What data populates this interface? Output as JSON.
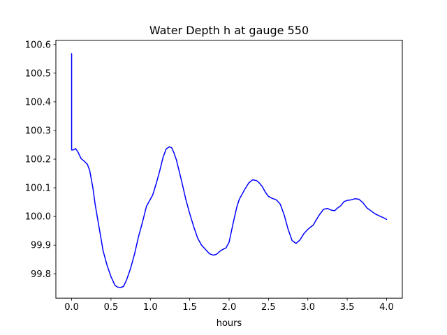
{
  "chart_data": {
    "type": "line",
    "title": "Water Depth h at gauge 550",
    "xlabel": "hours",
    "ylabel": "",
    "xlim": [
      -0.2,
      4.2
    ],
    "ylim": [
      99.715,
      100.615
    ],
    "xticks": [
      0.0,
      0.5,
      1.0,
      1.5,
      2.0,
      2.5,
      3.0,
      3.5,
      4.0
    ],
    "xtick_labels": [
      "0.0",
      "0.5",
      "1.0",
      "1.5",
      "2.0",
      "2.5",
      "3.0",
      "3.5",
      "4.0"
    ],
    "yticks": [
      99.8,
      99.9,
      100.0,
      100.1,
      100.2,
      100.3,
      100.4,
      100.5,
      100.6
    ],
    "ytick_labels": [
      "99.8",
      "99.9",
      "100.0",
      "100.1",
      "100.2",
      "100.3",
      "100.4",
      "100.5",
      "100.6"
    ],
    "grid": false,
    "series": [
      {
        "color": "#0000ff",
        "x": [
          0.0,
          0.0,
          0.0,
          0.02,
          0.05,
          0.08,
          0.12,
          0.16,
          0.2,
          0.23,
          0.27,
          0.3,
          0.35,
          0.4,
          0.45,
          0.5,
          0.55,
          0.58,
          0.62,
          0.66,
          0.7,
          0.75,
          0.8,
          0.85,
          0.9,
          0.95,
          1.0,
          1.03,
          1.08,
          1.12,
          1.16,
          1.2,
          1.24,
          1.27,
          1.3,
          1.33,
          1.36,
          1.4,
          1.45,
          1.5,
          1.55,
          1.6,
          1.65,
          1.7,
          1.75,
          1.8,
          1.84,
          1.88,
          1.92,
          1.96,
          2.0,
          2.05,
          2.1,
          2.13,
          2.17,
          2.2,
          2.25,
          2.3,
          2.35,
          2.38,
          2.42,
          2.46,
          2.5,
          2.55,
          2.6,
          2.65,
          2.7,
          2.75,
          2.8,
          2.85,
          2.9,
          2.95,
          3.0,
          3.03,
          3.07,
          3.1,
          3.15,
          3.2,
          3.25,
          3.3,
          3.34,
          3.38,
          3.42,
          3.46,
          3.5,
          3.55,
          3.6,
          3.65,
          3.7,
          3.75,
          3.8,
          3.85,
          3.9,
          3.95,
          4.0
        ],
        "y": [
          100.568,
          100.3,
          100.232,
          100.232,
          100.237,
          100.225,
          100.202,
          100.193,
          100.182,
          100.16,
          100.1,
          100.04,
          99.96,
          99.88,
          99.83,
          99.79,
          99.76,
          99.754,
          99.752,
          99.756,
          99.78,
          99.82,
          99.87,
          99.93,
          99.98,
          100.035,
          100.06,
          100.075,
          100.12,
          100.16,
          100.205,
          100.235,
          100.243,
          100.24,
          100.222,
          100.198,
          100.165,
          100.12,
          100.06,
          100.01,
          99.965,
          99.925,
          99.9,
          99.885,
          99.87,
          99.865,
          99.868,
          99.878,
          99.885,
          99.89,
          99.91,
          99.975,
          100.035,
          100.06,
          100.08,
          100.095,
          100.117,
          100.128,
          100.125,
          100.118,
          100.105,
          100.085,
          100.07,
          100.063,
          100.058,
          100.043,
          100.005,
          99.955,
          99.916,
          99.906,
          99.918,
          99.94,
          99.955,
          99.962,
          99.97,
          99.985,
          100.007,
          100.025,
          100.028,
          100.022,
          100.02,
          100.03,
          100.038,
          100.052,
          100.056,
          100.058,
          100.062,
          100.06,
          100.048,
          100.03,
          100.02,
          100.01,
          100.003,
          99.997,
          99.99
        ]
      }
    ]
  }
}
